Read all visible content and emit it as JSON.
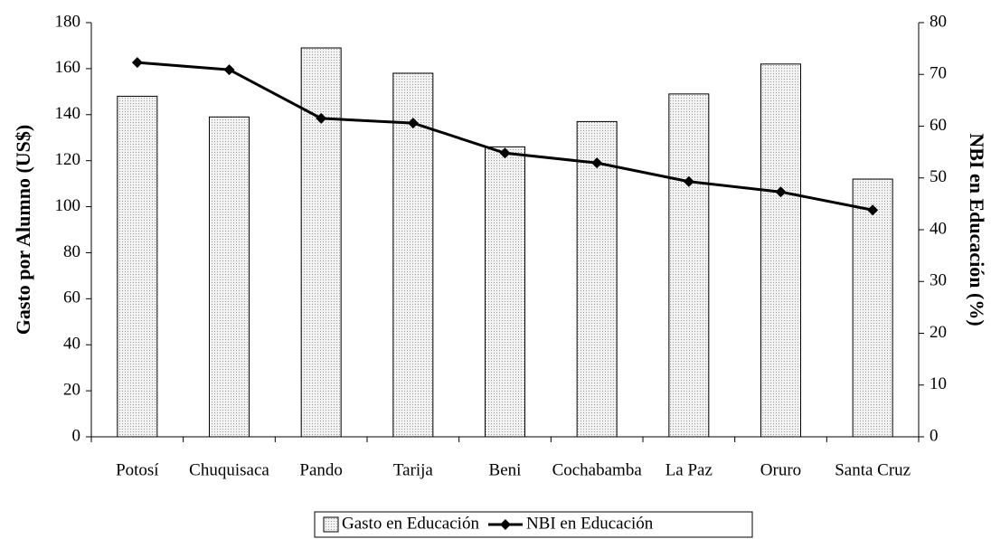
{
  "chart_data": {
    "type": "bar-line",
    "categories": [
      "Potosí",
      "Chuquisaca",
      "Pando",
      "Tarija",
      "Beni",
      "Cochabamba",
      "La Paz",
      "Oruro",
      "Santa Cruz"
    ],
    "series": [
      {
        "name": "Gasto en Educación",
        "type": "bar",
        "color": "#d9d9d9",
        "values": [
          148,
          139,
          169,
          158,
          126,
          137,
          149,
          162,
          112
        ]
      },
      {
        "name": "NBI en Educación",
        "type": "line",
        "axis": "y2",
        "color": "#000000",
        "values": [
          72.3,
          70.9,
          61.5,
          60.6,
          54.8,
          52.9,
          49.3,
          47.3,
          43.8
        ]
      }
    ],
    "ylabel": "Gasto por Alumno (US$)",
    "y2label": "NBI en Educación (%)",
    "ylim": [
      0,
      180
    ],
    "yticks": [
      0,
      20,
      40,
      60,
      80,
      100,
      120,
      140,
      160,
      180
    ],
    "y2lim": [
      0,
      80
    ],
    "y2ticks": [
      0,
      10,
      20,
      30,
      40,
      50,
      60,
      70,
      80
    ],
    "legend": "bottom"
  }
}
